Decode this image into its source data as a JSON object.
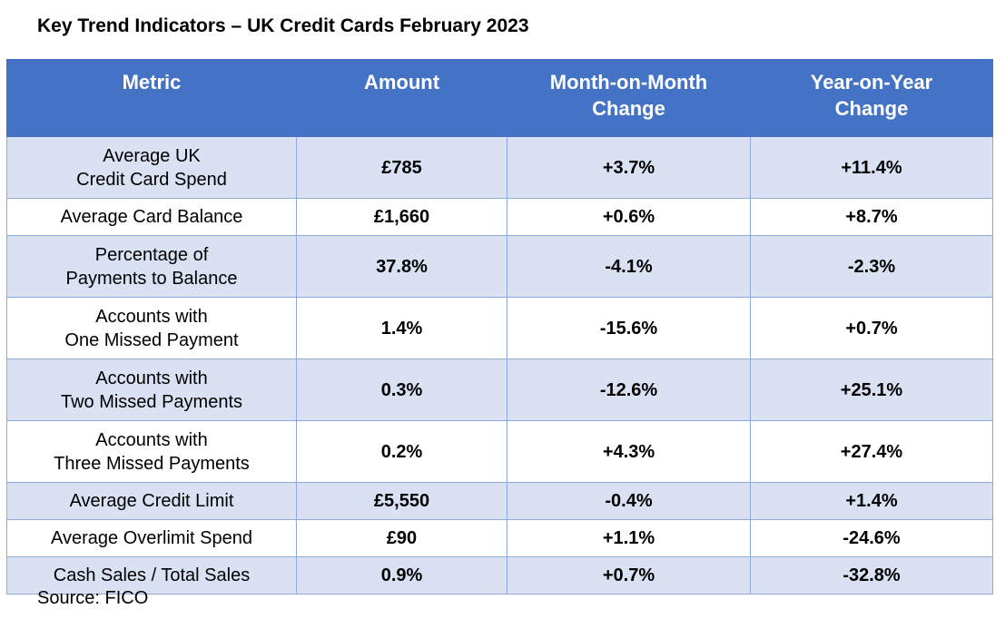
{
  "title": "Key Trend Indicators – UK Credit Cards February 2023",
  "columns": [
    "Metric",
    "Amount",
    "Month-on-Month\nChange",
    "Year-on-Year\nChange"
  ],
  "rows": [
    {
      "metric": [
        "Average UK",
        "Credit Card Spend"
      ],
      "amount": "£785",
      "mom": "+3.7%",
      "yoy": "+11.4%"
    },
    {
      "metric": [
        "Average Card Balance"
      ],
      "amount": "£1,660",
      "mom": "+0.6%",
      "yoy": "+8.7%"
    },
    {
      "metric": [
        "Percentage of",
        "Payments to Balance"
      ],
      "amount": "37.8%",
      "mom": "-4.1%",
      "yoy": "-2.3%"
    },
    {
      "metric": [
        "Accounts with",
        "One Missed Payment"
      ],
      "amount": "1.4%",
      "mom": "-15.6%",
      "yoy": "+0.7%"
    },
    {
      "metric": [
        "Accounts with",
        "Two Missed Payments"
      ],
      "amount": "0.3%",
      "mom": "-12.6%",
      "yoy": "+25.1%"
    },
    {
      "metric": [
        "Accounts with",
        "Three Missed Payments"
      ],
      "amount": "0.2%",
      "mom": "+4.3%",
      "yoy": "+27.4%"
    },
    {
      "metric": [
        "Average Credit Limit"
      ],
      "amount": "£5,550",
      "mom": "-0.4%",
      "yoy": "+1.4%"
    },
    {
      "metric": [
        "Average Overlimit Spend"
      ],
      "amount": "£90",
      "mom": "+1.1%",
      "yoy": "-24.6%"
    },
    {
      "metric": [
        "Cash Sales / Total Sales"
      ],
      "amount": "0.9%",
      "mom": "+0.7%",
      "yoy": "-32.8%"
    }
  ],
  "source": "Source: FICO",
  "colors": {
    "header": "#4472C4",
    "band": "#D9E1F2",
    "border": "#8EA9DB"
  }
}
